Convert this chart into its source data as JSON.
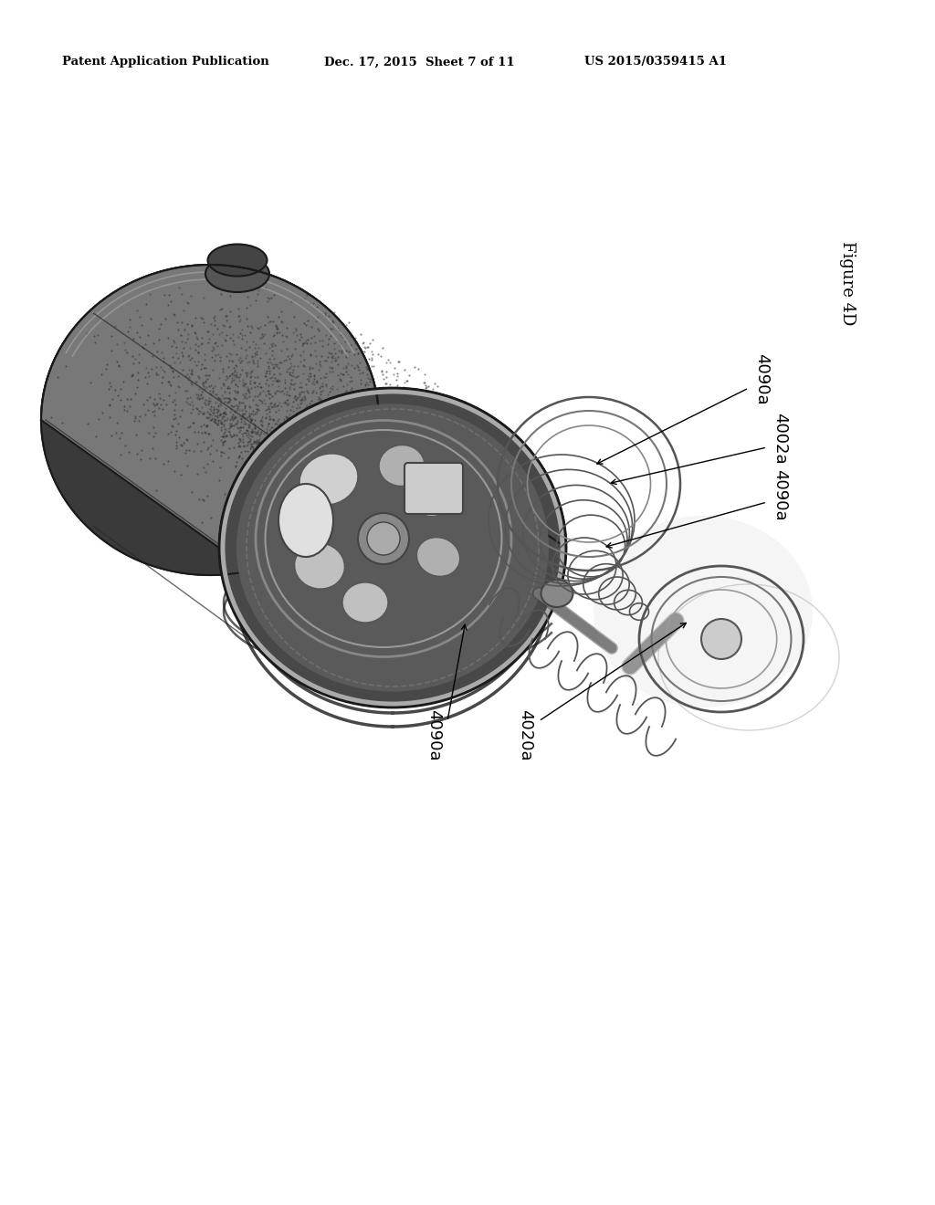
{
  "background_color": "#ffffff",
  "header_left": "Patent Application Publication",
  "header_center": "Dec. 17, 2015  Sheet 7 of 11",
  "header_right": "US 2015/0359415 A1",
  "figure_label": "Figure 4D",
  "label_4090a_top": "4090a",
  "label_4002a": "4002a",
  "label_4090a_mid": "4090a",
  "label_4090a_bot": "4090a",
  "label_4020a": "4020a",
  "header_fontsize": 9.5,
  "label_fontsize": 13,
  "figure_label_fontsize": 13
}
